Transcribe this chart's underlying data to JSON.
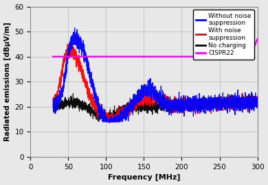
{
  "title": "",
  "xlabel": "Frequency [MHz]",
  "ylabel": "Radiated emissions [dBμV/m]",
  "xlim": [
    0,
    300
  ],
  "ylim": [
    0,
    60
  ],
  "xticks": [
    0,
    50,
    100,
    150,
    200,
    250,
    300
  ],
  "yticks": [
    0,
    10,
    20,
    30,
    40,
    50,
    60
  ],
  "colors": {
    "without_suppression": "#0000FF",
    "with_suppression": "#FF0000",
    "no_charging": "#000000",
    "cispr22": "#FF00FF"
  },
  "legend_labels": [
    "Without noise\nsuppression",
    "With noise\nsuppression",
    "No charging",
    "CISPR22"
  ],
  "background_color": "#E8E8E8",
  "figsize": [
    3.9,
    2.7
  ],
  "dpi": 100
}
